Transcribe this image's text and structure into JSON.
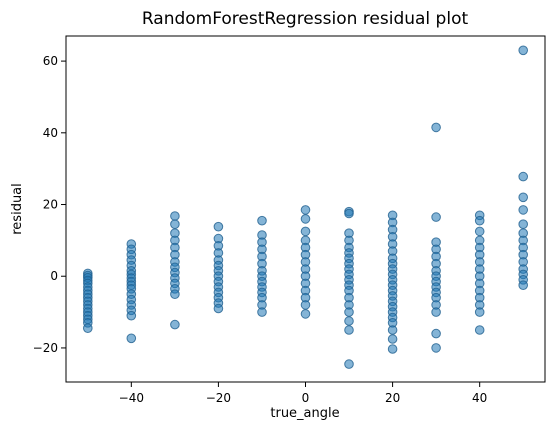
{
  "chart_data": {
    "type": "scatter",
    "title": "RandomForestRegression residual plot",
    "xlabel": "true_angle",
    "ylabel": "residual",
    "xlim": [
      -55,
      55
    ],
    "ylim": [
      -29.5,
      67
    ],
    "x_ticks": [
      -40,
      -20,
      0,
      20,
      40
    ],
    "y_ticks": [
      -20,
      0,
      20,
      40,
      60
    ],
    "x_tick_labels": [
      "−40",
      "−20",
      "0",
      "20",
      "40"
    ],
    "y_tick_labels": [
      "−20",
      "0",
      "20",
      "40",
      "60"
    ],
    "grid": false,
    "legend": "none",
    "marker_color": "#1f77b4",
    "marker_edge_color": "#1f5f8f",
    "marker_alpha": 0.55,
    "series": [
      {
        "points": [
          [
            -50,
            0.8
          ],
          [
            -50,
            0.2
          ],
          [
            -50,
            -0.4
          ],
          [
            -50,
            -1.2
          ],
          [
            -50,
            -2.0
          ],
          [
            -50,
            -3.0
          ],
          [
            -50,
            -4.0
          ],
          [
            -50,
            -5.0
          ],
          [
            -50,
            -6.0
          ],
          [
            -50,
            -7.0
          ],
          [
            -50,
            -8.0
          ],
          [
            -50,
            -9.0
          ],
          [
            -50,
            -10.0
          ],
          [
            -50,
            -11.0
          ],
          [
            -50,
            -12.0
          ],
          [
            -50,
            -13.0
          ],
          [
            -50,
            -14.5
          ],
          [
            -40,
            9.0
          ],
          [
            -40,
            7.5
          ],
          [
            -40,
            6.0
          ],
          [
            -40,
            4.5
          ],
          [
            -40,
            3.0
          ],
          [
            -40,
            1.5
          ],
          [
            -40,
            0.5
          ],
          [
            -40,
            -0.5
          ],
          [
            -40,
            -1.5
          ],
          [
            -40,
            -2.5
          ],
          [
            -40,
            -3.5
          ],
          [
            -40,
            -5.0
          ],
          [
            -40,
            -6.5
          ],
          [
            -40,
            -8.0
          ],
          [
            -40,
            -9.5
          ],
          [
            -40,
            -11.0
          ],
          [
            -40,
            -17.3
          ],
          [
            -30,
            16.8
          ],
          [
            -30,
            14.5
          ],
          [
            -30,
            12.0
          ],
          [
            -30,
            10.0
          ],
          [
            -30,
            8.0
          ],
          [
            -30,
            6.0
          ],
          [
            -30,
            4.0
          ],
          [
            -30,
            2.5
          ],
          [
            -30,
            1.0
          ],
          [
            -30,
            -0.5
          ],
          [
            -30,
            -2.0
          ],
          [
            -30,
            -3.5
          ],
          [
            -30,
            -5.0
          ],
          [
            -30,
            -13.5
          ],
          [
            -20,
            13.8
          ],
          [
            -20,
            10.5
          ],
          [
            -20,
            8.5
          ],
          [
            -20,
            6.5
          ],
          [
            -20,
            4.5
          ],
          [
            -20,
            3.0
          ],
          [
            -20,
            1.5
          ],
          [
            -20,
            0.0
          ],
          [
            -20,
            -1.5
          ],
          [
            -20,
            -3.0
          ],
          [
            -20,
            -4.5
          ],
          [
            -20,
            -6.0
          ],
          [
            -20,
            -7.5
          ],
          [
            -20,
            -9.0
          ],
          [
            -10,
            15.5
          ],
          [
            -10,
            11.5
          ],
          [
            -10,
            9.5
          ],
          [
            -10,
            7.5
          ],
          [
            -10,
            5.5
          ],
          [
            -10,
            3.5
          ],
          [
            -10,
            1.5
          ],
          [
            -10,
            0.0
          ],
          [
            -10,
            -1.5
          ],
          [
            -10,
            -3.0
          ],
          [
            -10,
            -4.5
          ],
          [
            -10,
            -6.0
          ],
          [
            -10,
            -8.0
          ],
          [
            -10,
            -10.0
          ],
          [
            0,
            18.5
          ],
          [
            0,
            16.0
          ],
          [
            0,
            12.5
          ],
          [
            0,
            10.0
          ],
          [
            0,
            8.0
          ],
          [
            0,
            6.0
          ],
          [
            0,
            4.0
          ],
          [
            0,
            2.0
          ],
          [
            0,
            0.0
          ],
          [
            0,
            -2.0
          ],
          [
            0,
            -4.0
          ],
          [
            0,
            -6.0
          ],
          [
            0,
            -8.0
          ],
          [
            0,
            -10.5
          ],
          [
            10,
            18.0
          ],
          [
            10,
            17.5
          ],
          [
            10,
            12.0
          ],
          [
            10,
            10.0
          ],
          [
            10,
            8.0
          ],
          [
            10,
            6.5
          ],
          [
            10,
            5.0
          ],
          [
            10,
            3.5
          ],
          [
            10,
            2.0
          ],
          [
            10,
            0.5
          ],
          [
            10,
            -1.0
          ],
          [
            10,
            -2.5
          ],
          [
            10,
            -4.0
          ],
          [
            10,
            -6.0
          ],
          [
            10,
            -8.0
          ],
          [
            10,
            -10.0
          ],
          [
            10,
            -12.5
          ],
          [
            10,
            -15.0
          ],
          [
            10,
            -24.5
          ],
          [
            20,
            17.0
          ],
          [
            20,
            15.0
          ],
          [
            20,
            13.0
          ],
          [
            20,
            11.0
          ],
          [
            20,
            9.0
          ],
          [
            20,
            7.0
          ],
          [
            20,
            5.0
          ],
          [
            20,
            3.5
          ],
          [
            20,
            2.0
          ],
          [
            20,
            0.5
          ],
          [
            20,
            -1.0
          ],
          [
            20,
            -2.5
          ],
          [
            20,
            -4.0
          ],
          [
            20,
            -5.5
          ],
          [
            20,
            -7.0
          ],
          [
            20,
            -8.5
          ],
          [
            20,
            -10.0
          ],
          [
            20,
            -11.5
          ],
          [
            20,
            -13.0
          ],
          [
            20,
            -15.0
          ],
          [
            20,
            -17.5
          ],
          [
            20,
            -20.3
          ],
          [
            30,
            41.5
          ],
          [
            30,
            16.5
          ],
          [
            30,
            9.5
          ],
          [
            30,
            7.5
          ],
          [
            30,
            5.5
          ],
          [
            30,
            3.5
          ],
          [
            30,
            1.5
          ],
          [
            30,
            0.0
          ],
          [
            30,
            -1.5
          ],
          [
            30,
            -3.0
          ],
          [
            30,
            -4.5
          ],
          [
            30,
            -6.0
          ],
          [
            30,
            -8.0
          ],
          [
            30,
            -10.0
          ],
          [
            30,
            -16.0
          ],
          [
            30,
            -20.0
          ],
          [
            40,
            17.0
          ],
          [
            40,
            15.5
          ],
          [
            40,
            12.5
          ],
          [
            40,
            10.0
          ],
          [
            40,
            8.0
          ],
          [
            40,
            6.0
          ],
          [
            40,
            4.0
          ],
          [
            40,
            2.0
          ],
          [
            40,
            0.0
          ],
          [
            40,
            -2.0
          ],
          [
            40,
            -4.0
          ],
          [
            40,
            -6.0
          ],
          [
            40,
            -8.0
          ],
          [
            40,
            -10.0
          ],
          [
            40,
            -15.0
          ],
          [
            50,
            63.0
          ],
          [
            50,
            27.8
          ],
          [
            50,
            22.0
          ],
          [
            50,
            18.5
          ],
          [
            50,
            14.5
          ],
          [
            50,
            12.0
          ],
          [
            50,
            10.0
          ],
          [
            50,
            8.0
          ],
          [
            50,
            6.0
          ],
          [
            50,
            4.0
          ],
          [
            50,
            2.0
          ],
          [
            50,
            0.5
          ],
          [
            50,
            -1.0
          ],
          [
            50,
            -2.5
          ]
        ]
      }
    ]
  }
}
